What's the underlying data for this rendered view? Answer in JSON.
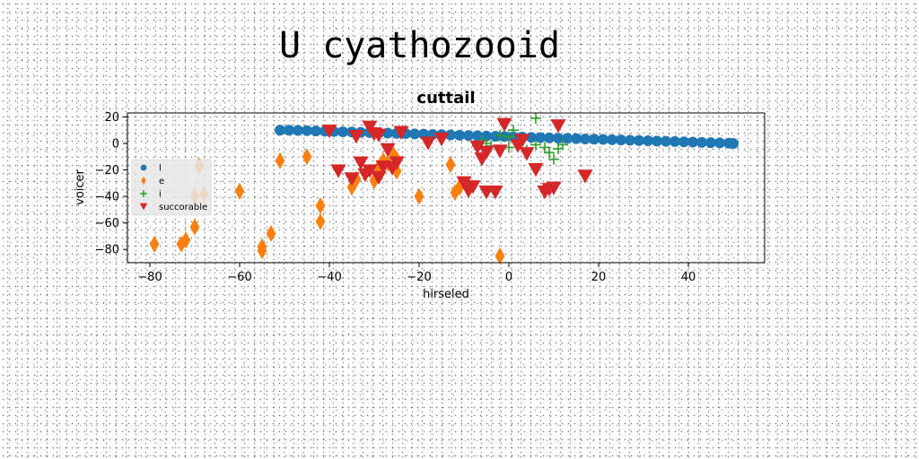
{
  "page_title": "U cyathozooid",
  "colors": {
    "series_1": "#1f77b4",
    "series_2": "#ff7f0e",
    "series_3": "#2ca02c",
    "series_4": "#d62728"
  },
  "chart_data": {
    "type": "scatter",
    "title": "cuttail",
    "xlabel": "hirseled",
    "ylabel": "voicer",
    "xlim": [
      -85,
      57
    ],
    "ylim": [
      -90,
      23
    ],
    "xticks": [
      -80,
      -60,
      -40,
      -20,
      0,
      20,
      40
    ],
    "yticks": [
      20,
      0,
      -20,
      -40,
      -60,
      -80
    ],
    "grid": false,
    "legend_position": "center-left",
    "series": [
      {
        "name": "l",
        "marker": "circle",
        "color": "#1f77b4",
        "points": [
          [
            -51,
            10
          ],
          [
            -49,
            10
          ],
          [
            -47,
            9.8
          ],
          [
            -45,
            9.6
          ],
          [
            -43,
            9.4
          ],
          [
            -41,
            9.2
          ],
          [
            -39,
            9
          ],
          [
            -37,
            8.8
          ],
          [
            -35,
            8.6
          ],
          [
            -33,
            8.4
          ],
          [
            -31,
            8.2
          ],
          [
            -29,
            8
          ],
          [
            -27,
            7.8
          ],
          [
            -25,
            7.6
          ],
          [
            -23,
            7.4
          ],
          [
            -21,
            7.2
          ],
          [
            -19,
            7
          ],
          [
            -17,
            6.8
          ],
          [
            -15,
            6.6
          ],
          [
            -13,
            6.4
          ],
          [
            -11,
            6.2
          ],
          [
            -9,
            6
          ],
          [
            -7,
            5.8
          ],
          [
            -5,
            5.6
          ],
          [
            -3,
            5.4
          ],
          [
            -1,
            5.2
          ],
          [
            1,
            5
          ],
          [
            3,
            4.8
          ],
          [
            5,
            4.6
          ],
          [
            7,
            4.4
          ],
          [
            9,
            4.2
          ],
          [
            11,
            4
          ],
          [
            13,
            3.8
          ],
          [
            15,
            3.6
          ],
          [
            17,
            3.4
          ],
          [
            19,
            3.2
          ],
          [
            21,
            3
          ],
          [
            23,
            2.8
          ],
          [
            25,
            2.6
          ],
          [
            27,
            2.4
          ],
          [
            29,
            2.2
          ],
          [
            31,
            2
          ],
          [
            33,
            1.8
          ],
          [
            35,
            1.6
          ],
          [
            37,
            1.4
          ],
          [
            39,
            1.2
          ],
          [
            41,
            1
          ],
          [
            43,
            0.8
          ],
          [
            45,
            0.6
          ],
          [
            47,
            0.4
          ],
          [
            49,
            0.2
          ],
          [
            50,
            0
          ]
        ]
      },
      {
        "name": "e",
        "marker": "diamond",
        "color": "#ff7f0e",
        "points": [
          [
            -79,
            -76
          ],
          [
            -73,
            -76
          ],
          [
            -72,
            -73
          ],
          [
            -70,
            -63
          ],
          [
            -70,
            -40
          ],
          [
            -69,
            -17
          ],
          [
            -68,
            -38
          ],
          [
            -60,
            -36
          ],
          [
            -55,
            -81
          ],
          [
            -55,
            -78
          ],
          [
            -53,
            -68
          ],
          [
            -51,
            -13
          ],
          [
            -45,
            -10
          ],
          [
            -42,
            -47
          ],
          [
            -42,
            -59
          ],
          [
            -35,
            -33
          ],
          [
            -34,
            -27
          ],
          [
            -30,
            -28
          ],
          [
            -29,
            -18
          ],
          [
            -29,
            -21
          ],
          [
            -28,
            -13
          ],
          [
            -27,
            -15
          ],
          [
            -26,
            -7
          ],
          [
            -25,
            -21
          ],
          [
            -25,
            -12
          ],
          [
            -20,
            -40
          ],
          [
            -13,
            -16
          ],
          [
            -12,
            -37
          ],
          [
            -11,
            -33
          ],
          [
            -2,
            -85
          ]
        ]
      },
      {
        "name": "i",
        "marker": "plus",
        "color": "#2ca02c",
        "points": [
          [
            -7,
            -2
          ],
          [
            -6,
            2
          ],
          [
            -5,
            0
          ],
          [
            -4,
            -2
          ],
          [
            -2,
            6
          ],
          [
            0,
            5
          ],
          [
            0,
            -3
          ],
          [
            1,
            10
          ],
          [
            4,
            -5
          ],
          [
            6,
            19
          ],
          [
            6,
            -1
          ],
          [
            8,
            -3
          ],
          [
            9,
            -7
          ],
          [
            10,
            -12
          ],
          [
            11,
            -4
          ],
          [
            12,
            -1
          ]
        ]
      },
      {
        "name": "succorable",
        "marker": "triangle-down",
        "color": "#d62728",
        "points": [
          [
            -40,
            9
          ],
          [
            -38,
            -21
          ],
          [
            -35,
            -27
          ],
          [
            -34,
            5
          ],
          [
            -33,
            -15
          ],
          [
            -32,
            -24
          ],
          [
            -31,
            -21
          ],
          [
            -31,
            12
          ],
          [
            -30,
            7
          ],
          [
            -29,
            6
          ],
          [
            -29,
            -26
          ],
          [
            -28,
            -18
          ],
          [
            -27,
            -5
          ],
          [
            -26,
            -19
          ],
          [
            -25,
            -15
          ],
          [
            -24,
            8
          ],
          [
            -18,
            0
          ],
          [
            -15,
            3
          ],
          [
            -10,
            -30
          ],
          [
            -9,
            -36
          ],
          [
            -8,
            -33
          ],
          [
            -7,
            -3
          ],
          [
            -6,
            -12
          ],
          [
            -5,
            -37
          ],
          [
            -5,
            -7
          ],
          [
            -3,
            -37
          ],
          [
            -2,
            -6
          ],
          [
            -1,
            14
          ],
          [
            2,
            -2
          ],
          [
            3,
            2
          ],
          [
            4,
            -8
          ],
          [
            6,
            -20
          ],
          [
            8,
            -37
          ],
          [
            9,
            -35
          ],
          [
            10,
            -34
          ],
          [
            11,
            13
          ],
          [
            17,
            -25
          ]
        ]
      }
    ]
  }
}
